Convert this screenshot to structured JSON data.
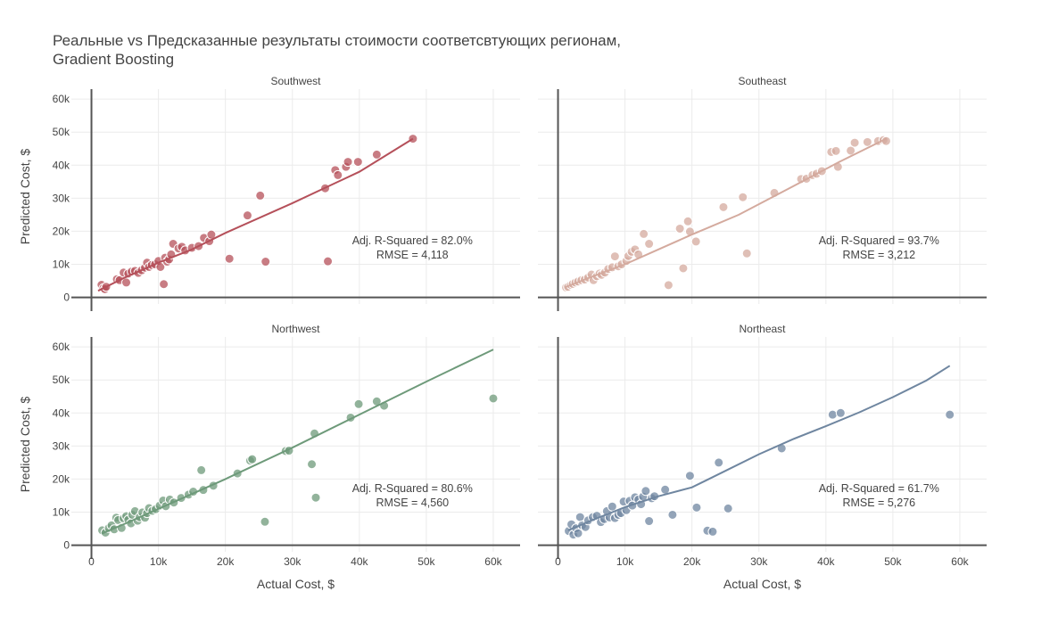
{
  "chart_data": {
    "type": "scatter",
    "title": [
      "Реальные vs Предсказанные результаты стоимости соответсвтующих регионам,",
      "Gradient Boosting"
    ],
    "xlabel": "Actual Cost, $",
    "ylabel": "Predicted Cost, $",
    "xlim": [
      -3000,
      64000
    ],
    "ylim": [
      -2000,
      63000
    ],
    "xticks": [
      0,
      10000,
      20000,
      30000,
      40000,
      50000,
      60000
    ],
    "xtick_labels": [
      "0",
      "10k",
      "20k",
      "30k",
      "40k",
      "50k",
      "60k"
    ],
    "yticks": [
      0,
      10000,
      20000,
      30000,
      40000,
      50000,
      60000
    ],
    "ytick_labels": [
      "0",
      "10k",
      "20k",
      "30k",
      "40k",
      "50k",
      "60k"
    ],
    "grid": true,
    "facets": [
      {
        "name": "Southwest",
        "color": "#b5505a",
        "annotation": [
          "Adj. R-Squared = 82.0%",
          "RMSE = 4,118"
        ],
        "line": [
          [
            1000,
            2000
          ],
          [
            5000,
            6000
          ],
          [
            10000,
            10500
          ],
          [
            15000,
            14500
          ],
          [
            20000,
            19500
          ],
          [
            30000,
            28500
          ],
          [
            40000,
            38000
          ],
          [
            48000,
            48000
          ]
        ],
        "points": [
          [
            1500,
            3800
          ],
          [
            1800,
            2800
          ],
          [
            2000,
            2500
          ],
          [
            2200,
            3200
          ],
          [
            3800,
            5500
          ],
          [
            4200,
            5200
          ],
          [
            4800,
            7500
          ],
          [
            5200,
            4500
          ],
          [
            5500,
            7200
          ],
          [
            6000,
            7800
          ],
          [
            6500,
            8000
          ],
          [
            7000,
            7400
          ],
          [
            7500,
            8200
          ],
          [
            8000,
            9000
          ],
          [
            8300,
            10500
          ],
          [
            8600,
            9200
          ],
          [
            9000,
            9800
          ],
          [
            9500,
            10000
          ],
          [
            10000,
            11000
          ],
          [
            10300,
            9200
          ],
          [
            10800,
            4000
          ],
          [
            11000,
            12000
          ],
          [
            11300,
            10800
          ],
          [
            11600,
            11500
          ],
          [
            11900,
            13000
          ],
          [
            12200,
            16200
          ],
          [
            13000,
            14800
          ],
          [
            13500,
            15300
          ],
          [
            14000,
            14200
          ],
          [
            15000,
            15000
          ],
          [
            16000,
            15500
          ],
          [
            16800,
            18000
          ],
          [
            17600,
            17000
          ],
          [
            17900,
            19000
          ],
          [
            20600,
            11700
          ],
          [
            23300,
            24800
          ],
          [
            25200,
            30800
          ],
          [
            26000,
            10800
          ],
          [
            34900,
            33000
          ],
          [
            35300,
            10900
          ],
          [
            36400,
            38500
          ],
          [
            36800,
            37000
          ],
          [
            38000,
            39500
          ],
          [
            38300,
            41000
          ],
          [
            39800,
            41000
          ],
          [
            42600,
            43200
          ],
          [
            48000,
            48000
          ]
        ]
      },
      {
        "name": "Southeast",
        "color": "#d4aa9e",
        "annotation": [
          "Adj. R-Squared = 93.7%",
          "RMSE = 3,212"
        ],
        "line": [
          [
            1000,
            3000
          ],
          [
            5000,
            6200
          ],
          [
            10000,
            10000
          ],
          [
            15000,
            14500
          ],
          [
            20000,
            19000
          ],
          [
            27000,
            25000
          ],
          [
            35000,
            33500
          ],
          [
            42000,
            41000
          ],
          [
            49000,
            48000
          ]
        ],
        "points": [
          [
            1200,
            3000
          ],
          [
            1500,
            3200
          ],
          [
            1900,
            3800
          ],
          [
            2200,
            4100
          ],
          [
            2600,
            4500
          ],
          [
            3000,
            4800
          ],
          [
            3500,
            5200
          ],
          [
            4000,
            5400
          ],
          [
            4500,
            6000
          ],
          [
            5000,
            6900
          ],
          [
            5300,
            5200
          ],
          [
            5800,
            6400
          ],
          [
            6200,
            7200
          ],
          [
            6500,
            6800
          ],
          [
            7000,
            7500
          ],
          [
            7500,
            8600
          ],
          [
            8100,
            9100
          ],
          [
            8500,
            12400
          ],
          [
            9000,
            9400
          ],
          [
            9500,
            10000
          ],
          [
            10200,
            11000
          ],
          [
            10500,
            12500
          ],
          [
            11000,
            13800
          ],
          [
            11500,
            14500
          ],
          [
            12000,
            13000
          ],
          [
            12800,
            19200
          ],
          [
            13600,
            16200
          ],
          [
            16500,
            3700
          ],
          [
            18200,
            20800
          ],
          [
            18700,
            8800
          ],
          [
            19400,
            23000
          ],
          [
            19700,
            19900
          ],
          [
            20600,
            16900
          ],
          [
            24700,
            27300
          ],
          [
            27600,
            30300
          ],
          [
            28200,
            13300
          ],
          [
            32300,
            31600
          ],
          [
            36300,
            35800
          ],
          [
            37100,
            35900
          ],
          [
            38000,
            37000
          ],
          [
            38600,
            37400
          ],
          [
            39400,
            38200
          ],
          [
            40800,
            44000
          ],
          [
            41500,
            44300
          ],
          [
            41800,
            39500
          ],
          [
            43700,
            44400
          ],
          [
            44300,
            46800
          ],
          [
            46200,
            47000
          ],
          [
            47800,
            47300
          ],
          [
            48600,
            47600
          ],
          [
            49000,
            47300
          ]
        ]
      },
      {
        "name": "Northwest",
        "color": "#6e9a7a",
        "annotation": [
          "Adj. R-Squared = 80.6%",
          "RMSE = 4,560"
        ],
        "line": [
          [
            1500,
            3500
          ],
          [
            5000,
            6500
          ],
          [
            10000,
            11000
          ],
          [
            20000,
            20000
          ],
          [
            30000,
            29500
          ],
          [
            40000,
            39500
          ],
          [
            50000,
            49500
          ],
          [
            60000,
            59200
          ]
        ],
        "points": [
          [
            1600,
            4500
          ],
          [
            2100,
            3800
          ],
          [
            2600,
            5200
          ],
          [
            3000,
            6000
          ],
          [
            3400,
            4800
          ],
          [
            3700,
            8300
          ],
          [
            4000,
            7600
          ],
          [
            4500,
            5200
          ],
          [
            4800,
            8100
          ],
          [
            5200,
            8800
          ],
          [
            5500,
            7700
          ],
          [
            5900,
            6600
          ],
          [
            6100,
            9200
          ],
          [
            6500,
            10300
          ],
          [
            6900,
            7400
          ],
          [
            7200,
            8500
          ],
          [
            7600,
            9900
          ],
          [
            8000,
            8300
          ],
          [
            8300,
            9700
          ],
          [
            8600,
            11200
          ],
          [
            9100,
            10400
          ],
          [
            9600,
            10900
          ],
          [
            10200,
            12000
          ],
          [
            10700,
            13500
          ],
          [
            11100,
            11800
          ],
          [
            11700,
            13800
          ],
          [
            12300,
            12900
          ],
          [
            13400,
            14300
          ],
          [
            14500,
            15300
          ],
          [
            15200,
            16200
          ],
          [
            16400,
            22700
          ],
          [
            16700,
            16700
          ],
          [
            18200,
            18000
          ],
          [
            21800,
            21700
          ],
          [
            23700,
            25600
          ],
          [
            24000,
            26000
          ],
          [
            25900,
            7100
          ],
          [
            29000,
            28500
          ],
          [
            29500,
            28600
          ],
          [
            32900,
            24500
          ],
          [
            33300,
            33800
          ],
          [
            33500,
            14400
          ],
          [
            38700,
            38600
          ],
          [
            39900,
            42700
          ],
          [
            42600,
            43500
          ],
          [
            43700,
            42200
          ],
          [
            60000,
            44400
          ]
        ]
      },
      {
        "name": "Northeast",
        "color": "#6f86a0",
        "annotation": [
          "Adj. R-Squared = 61.7%",
          "RMSE = 5,276"
        ],
        "line": [
          [
            1500,
            4500
          ],
          [
            5000,
            7500
          ],
          [
            10000,
            11500
          ],
          [
            15000,
            14800
          ],
          [
            20000,
            17500
          ],
          [
            22000,
            19500
          ],
          [
            25000,
            22500
          ],
          [
            30000,
            27500
          ],
          [
            35000,
            32000
          ],
          [
            40000,
            36000
          ],
          [
            45000,
            40200
          ],
          [
            50000,
            44800
          ],
          [
            55000,
            49800
          ],
          [
            58500,
            54300
          ]
        ],
        "points": [
          [
            1600,
            4300
          ],
          [
            2000,
            6300
          ],
          [
            2300,
            3200
          ],
          [
            2700,
            5100
          ],
          [
            3000,
            3600
          ],
          [
            3300,
            8500
          ],
          [
            3600,
            6000
          ],
          [
            4100,
            5500
          ],
          [
            4500,
            7500
          ],
          [
            5200,
            8500
          ],
          [
            5800,
            8900
          ],
          [
            6400,
            7000
          ],
          [
            6900,
            7900
          ],
          [
            7300,
            10300
          ],
          [
            7700,
            8400
          ],
          [
            8100,
            11700
          ],
          [
            8500,
            8200
          ],
          [
            9000,
            9200
          ],
          [
            9400,
            9700
          ],
          [
            9800,
            13200
          ],
          [
            10200,
            10600
          ],
          [
            10700,
            13400
          ],
          [
            11100,
            12000
          ],
          [
            11500,
            14500
          ],
          [
            12000,
            13800
          ],
          [
            12400,
            12400
          ],
          [
            12700,
            14700
          ],
          [
            13100,
            16400
          ],
          [
            13600,
            7300
          ],
          [
            14000,
            14200
          ],
          [
            14400,
            14800
          ],
          [
            16000,
            16800
          ],
          [
            17100,
            9200
          ],
          [
            19700,
            21000
          ],
          [
            20700,
            11400
          ],
          [
            22300,
            4400
          ],
          [
            23100,
            4100
          ],
          [
            24000,
            25000
          ],
          [
            25400,
            11100
          ],
          [
            33400,
            29300
          ],
          [
            41000,
            39500
          ],
          [
            42200,
            40000
          ],
          [
            58500,
            39500
          ]
        ]
      }
    ]
  }
}
